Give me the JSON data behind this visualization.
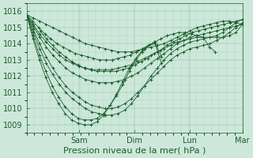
{
  "bg_color": "#cde8da",
  "plot_bg_color": "#cde8da",
  "line_color": "#1a5c2a",
  "xlabel": "Pression niveau de la mer( hPa )",
  "xlabel_fontsize": 8,
  "tick_fontsize": 7,
  "ylim": [
    1008.5,
    1016.5
  ],
  "yticks": [
    1009,
    1010,
    1011,
    1012,
    1013,
    1014,
    1015,
    1016
  ],
  "xlim": [
    0,
    4.0
  ],
  "day_labels": [
    "Sam",
    "Dim",
    "Lun",
    "Mar"
  ],
  "day_positions": [
    0.97,
    2.0,
    3.03,
    4.0
  ],
  "series": [
    {
      "x0": 0.0,
      "x1": 4.0,
      "y": [
        1015.8,
        1015.6,
        1015.4,
        1015.2,
        1015.0,
        1014.8,
        1014.6,
        1014.4,
        1014.2,
        1014.0,
        1013.9,
        1013.8,
        1013.7,
        1013.6,
        1013.5,
        1013.5,
        1013.5,
        1013.6,
        1013.7,
        1013.8,
        1013.9,
        1014.0,
        1014.2,
        1014.4,
        1014.6,
        1014.8,
        1015.0,
        1015.1,
        1015.2,
        1015.3,
        1015.4,
        1015.4,
        1015.3,
        1015.2
      ]
    },
    {
      "x0": 0.0,
      "x1": 3.5,
      "y": [
        1015.8,
        1015.4,
        1015.0,
        1014.6,
        1014.3,
        1014.0,
        1013.8,
        1013.6,
        1013.4,
        1013.3,
        1013.2,
        1013.1,
        1013.0,
        1013.0,
        1013.0,
        1013.1,
        1013.2,
        1013.3,
        1013.5,
        1013.7,
        1013.9,
        1014.1,
        1014.3,
        1014.5,
        1014.6,
        1014.7,
        1014.7,
        1014.6,
        1014.5,
        1014.4,
        1013.8,
        1013.5
      ]
    },
    {
      "x0": 0.0,
      "x1": 4.0,
      "y": [
        1015.8,
        1015.2,
        1014.6,
        1014.1,
        1013.7,
        1013.3,
        1013.0,
        1012.8,
        1012.6,
        1012.5,
        1012.4,
        1012.4,
        1012.4,
        1012.4,
        1012.5,
        1012.6,
        1012.7,
        1012.9,
        1013.1,
        1013.3,
        1013.5,
        1013.7,
        1013.9,
        1014.1,
        1014.2,
        1014.3,
        1014.4,
        1014.4,
        1014.4,
        1014.4,
        1014.4,
        1014.5,
        1014.7,
        1015.2
      ]
    },
    {
      "x0": 0.0,
      "x1": 4.0,
      "y": [
        1015.8,
        1015.1,
        1014.4,
        1013.8,
        1013.3,
        1012.9,
        1012.5,
        1012.2,
        1012.0,
        1011.8,
        1011.7,
        1011.6,
        1011.6,
        1011.6,
        1011.7,
        1011.8,
        1012.0,
        1012.2,
        1012.5,
        1012.8,
        1013.1,
        1013.4,
        1013.7,
        1014.0,
        1014.2,
        1014.4,
        1014.5,
        1014.6,
        1014.7,
        1014.8,
        1014.9,
        1015.0,
        1015.1,
        1015.2
      ]
    },
    {
      "x0": 0.0,
      "x1": 4.0,
      "y": [
        1015.8,
        1014.9,
        1014.0,
        1013.2,
        1012.5,
        1011.9,
        1011.4,
        1011.0,
        1010.7,
        1010.4,
        1010.2,
        1010.1,
        1010.0,
        1010.0,
        1010.1,
        1010.3,
        1010.6,
        1011.0,
        1011.4,
        1011.8,
        1012.2,
        1012.6,
        1013.0,
        1013.3,
        1013.5,
        1013.7,
        1013.8,
        1013.9,
        1014.0,
        1014.2,
        1014.4,
        1014.7,
        1015.0,
        1015.3
      ]
    },
    {
      "x0": 0.0,
      "x1": 4.0,
      "y": [
        1015.8,
        1014.7,
        1013.7,
        1012.8,
        1012.1,
        1011.5,
        1011.0,
        1010.6,
        1010.3,
        1010.0,
        1009.8,
        1009.7,
        1009.6,
        1009.6,
        1009.7,
        1009.9,
        1010.3,
        1010.8,
        1011.4,
        1012.0,
        1012.5,
        1013.0,
        1013.4,
        1013.7,
        1013.9,
        1014.1,
        1014.2,
        1014.3,
        1014.4,
        1014.5,
        1014.7,
        1015.0,
        1015.3,
        1015.5
      ]
    },
    {
      "x0": 0.0,
      "x1": 2.5,
      "y": [
        1015.8,
        1014.5,
        1013.3,
        1012.3,
        1011.4,
        1010.7,
        1010.1,
        1009.7,
        1009.4,
        1009.3,
        1009.3,
        1009.4,
        1009.7,
        1010.2,
        1010.8,
        1011.5,
        1012.3,
        1013.0,
        1013.5,
        1013.9,
        1014.1,
        1013.2
      ]
    },
    {
      "x0": 0.0,
      "x1": 2.5,
      "y": [
        1015.8,
        1014.3,
        1013.0,
        1011.9,
        1011.0,
        1010.3,
        1009.7,
        1009.3,
        1009.1,
        1009.0,
        1009.0,
        1009.2,
        1009.6,
        1010.2,
        1010.9,
        1011.7,
        1012.5,
        1013.1,
        1013.6,
        1013.9,
        1014.0,
        1012.8
      ]
    },
    {
      "x0": 0.25,
      "x1": 4.0,
      "y": [
        1014.8,
        1014.3,
        1013.9,
        1013.5,
        1013.2,
        1012.9,
        1012.7,
        1012.5,
        1012.4,
        1012.3,
        1012.3,
        1012.3,
        1012.3,
        1012.4,
        1012.5,
        1012.7,
        1012.9,
        1013.1,
        1013.4,
        1013.6,
        1013.9,
        1014.1,
        1014.3,
        1014.5,
        1014.7,
        1014.8,
        1014.9,
        1015.0,
        1015.1,
        1015.2,
        1015.3,
        1015.4,
        1015.5
      ]
    }
  ]
}
